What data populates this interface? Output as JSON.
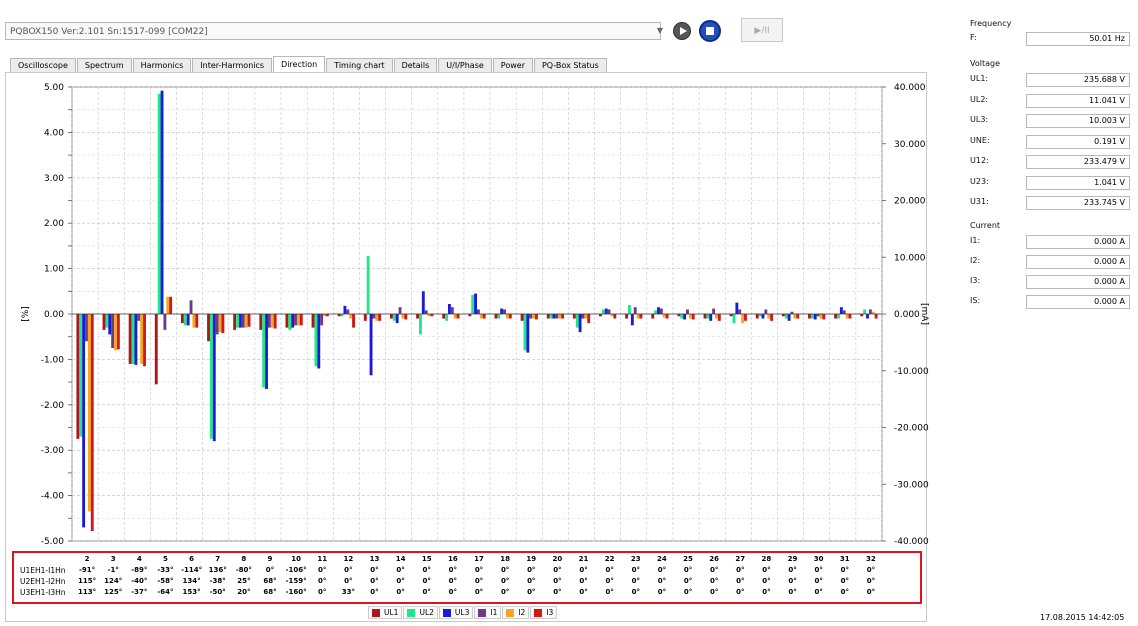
{
  "device": {
    "label": "PQBOX150 Ver:2.101 Sn:1517-099 [COM22]",
    "playpause": "▶/II"
  },
  "tabs": [
    "Oscilloscope",
    "Spectrum",
    "Harmonics",
    "Inter-Harmonics",
    "Direction",
    "Timing chart",
    "Details",
    "U/I/Phase",
    "Power",
    "PQ-Box Status"
  ],
  "active_tab": "Direction",
  "chart_data": {
    "type": "bar",
    "categories": [
      "2",
      "3",
      "4",
      "5",
      "6",
      "7",
      "8",
      "9",
      "10",
      "11",
      "12",
      "13",
      "14",
      "15",
      "16",
      "17",
      "18",
      "19",
      "20",
      "21",
      "22",
      "23",
      "24",
      "25",
      "26",
      "27",
      "28",
      "29",
      "30",
      "31",
      "32"
    ],
    "ylabel": "[%]",
    "y2label": "[mA]",
    "ylim": [
      -5,
      5
    ],
    "y2lim": [
      -40,
      40
    ],
    "yticks": [
      "5.00",
      "4.00",
      "3.00",
      "2.00",
      "1.00",
      "0.00",
      "-1.00",
      "-2.00",
      "-3.00",
      "-4.00",
      "-5.00"
    ],
    "y2ticks": [
      "40.000",
      "30.000",
      "20.000",
      "10.000",
      "0.000",
      "-10.000",
      "-20.000",
      "-30.000",
      "-40.000"
    ],
    "grid": true,
    "colors": {
      "UL1": "#b0141c",
      "UL2": "#1ee88a",
      "UL3": "#1a1ad8",
      "I1": "#6a3a8a",
      "I2": "#f5a623",
      "I3": "#d01818"
    },
    "series": [
      {
        "name": "UL1",
        "values": [
          -2.75,
          -0.35,
          -1.1,
          -1.55,
          -0.2,
          -0.6,
          -0.35,
          -0.35,
          -0.3,
          -0.3,
          -0.05,
          -0.15,
          -0.1,
          -0.1,
          -0.1,
          -0.05,
          -0.1,
          -0.15,
          -0.1,
          -0.1,
          -0.05,
          -0.1,
          -0.1,
          -0.05,
          -0.1,
          -0.05,
          -0.1,
          -0.05,
          -0.1,
          -0.1,
          -0.05
        ]
      },
      {
        "name": "UL2",
        "values": [
          -2.7,
          -0.3,
          -1.1,
          4.85,
          -0.25,
          -2.75,
          -0.3,
          -1.62,
          -0.35,
          -1.15,
          -0.05,
          1.28,
          -0.15,
          -0.45,
          -0.15,
          0.42,
          -0.1,
          -0.8,
          -0.1,
          -0.3,
          0.1,
          0.2,
          0.08,
          -0.1,
          -0.1,
          -0.2,
          -0.05,
          -0.1,
          -0.1,
          -0.1,
          0.1
        ]
      },
      {
        "name": "UL3",
        "values": [
          -4.7,
          -0.45,
          -1.12,
          4.92,
          -0.25,
          -2.8,
          -0.3,
          -1.65,
          -0.3,
          -1.2,
          0.18,
          -1.35,
          -0.2,
          0.5,
          0.22,
          0.45,
          0.12,
          -0.85,
          -0.1,
          -0.4,
          0.12,
          -0.25,
          0.15,
          -0.12,
          -0.15,
          0.25,
          -0.1,
          -0.15,
          -0.12,
          0.15,
          -0.1
        ]
      },
      {
        "name": "I1",
        "values": [
          -0.6,
          -0.75,
          -0.15,
          -0.35,
          0.3,
          -0.45,
          -0.3,
          -0.3,
          -0.25,
          -0.25,
          0.1,
          -0.1,
          0.15,
          0.08,
          0.15,
          0.1,
          0.1,
          -0.1,
          -0.1,
          -0.1,
          0.1,
          0.15,
          0.12,
          0.1,
          0.12,
          0.1,
          0.1,
          0.05,
          -0.05,
          0.08,
          0.1
        ]
      },
      {
        "name": "I2",
        "values": [
          -4.35,
          -0.8,
          -1.1,
          0.38,
          -0.3,
          -0.4,
          -0.3,
          -0.3,
          -0.25,
          -0.05,
          -0.1,
          -0.15,
          -0.1,
          -0.05,
          -0.1,
          -0.1,
          -0.1,
          -0.1,
          -0.1,
          -0.1,
          -0.05,
          -0.1,
          -0.08,
          -0.1,
          -0.1,
          -0.2,
          -0.1,
          -0.1,
          -0.1,
          -0.1,
          0.05
        ]
      },
      {
        "name": "I3",
        "values": [
          -4.78,
          -0.78,
          -1.15,
          0.38,
          -0.3,
          -0.42,
          -0.28,
          -0.32,
          -0.25,
          -0.05,
          -0.3,
          -0.15,
          -0.12,
          -0.05,
          -0.1,
          -0.1,
          -0.1,
          -0.12,
          -0.1,
          -0.2,
          -0.1,
          -0.1,
          -0.1,
          -0.12,
          -0.15,
          -0.15,
          -0.15,
          -0.1,
          -0.12,
          -0.1,
          -0.1
        ]
      }
    ]
  },
  "angle_table": {
    "rows": [
      {
        "label": "U1EH1-I1Hn",
        "values": [
          "-91°",
          "-1°",
          "-89°",
          "-33°",
          "-114°",
          "136°",
          "-80°",
          "0°",
          "-106°",
          "0°",
          "0°",
          "0°",
          "0°",
          "0°",
          "0°",
          "0°",
          "0°",
          "0°",
          "0°",
          "0°",
          "0°",
          "0°",
          "0°",
          "0°",
          "0°",
          "0°",
          "0°",
          "0°",
          "0°",
          "0°",
          "0°"
        ]
      },
      {
        "label": "U2EH1-I2Hn",
        "values": [
          "115°",
          "124°",
          "-40°",
          "-58°",
          "134°",
          "-38°",
          "25°",
          "68°",
          "-159°",
          "0°",
          "0°",
          "0°",
          "0°",
          "0°",
          "0°",
          "0°",
          "0°",
          "0°",
          "0°",
          "0°",
          "0°",
          "0°",
          "0°",
          "0°",
          "0°",
          "0°",
          "0°",
          "0°",
          "0°",
          "0°",
          "0°"
        ]
      },
      {
        "label": "U3EH1-I3Hn",
        "values": [
          "113°",
          "125°",
          "-37°",
          "-64°",
          "153°",
          "-50°",
          "20°",
          "68°",
          "-160°",
          "0°",
          "33°",
          "0°",
          "0°",
          "0°",
          "0°",
          "0°",
          "0°",
          "0°",
          "0°",
          "0°",
          "0°",
          "0°",
          "0°",
          "0°",
          "0°",
          "0°",
          "0°",
          "0°",
          "0°",
          "0°",
          "0°"
        ]
      }
    ]
  },
  "legend": [
    "UL1",
    "UL2",
    "UL3",
    "I1",
    "I2",
    "I3"
  ],
  "right_panel": {
    "frequency_title": "Frequency",
    "frequency": [
      {
        "label": "F:",
        "value": "50.01 Hz"
      }
    ],
    "voltage_title": "Voltage",
    "voltage": [
      {
        "label": "UL1:",
        "value": "235.688 V"
      },
      {
        "label": "UL2:",
        "value": "11.041 V"
      },
      {
        "label": "UL3:",
        "value": "10.003 V"
      },
      {
        "label": "UNE:",
        "value": "0.191 V"
      },
      {
        "label": "U12:",
        "value": "233.479 V"
      },
      {
        "label": "U23:",
        "value": "1.041 V"
      },
      {
        "label": "U31:",
        "value": "233.745 V"
      }
    ],
    "current_title": "Current",
    "current": [
      {
        "label": "I1:",
        "value": "0.000 A"
      },
      {
        "label": "I2:",
        "value": "0.000 A"
      },
      {
        "label": "I3:",
        "value": "0.000 A"
      },
      {
        "label": "IS:",
        "value": "0.000 A"
      }
    ]
  },
  "timestamp": "17.08.2015 14:42:05"
}
